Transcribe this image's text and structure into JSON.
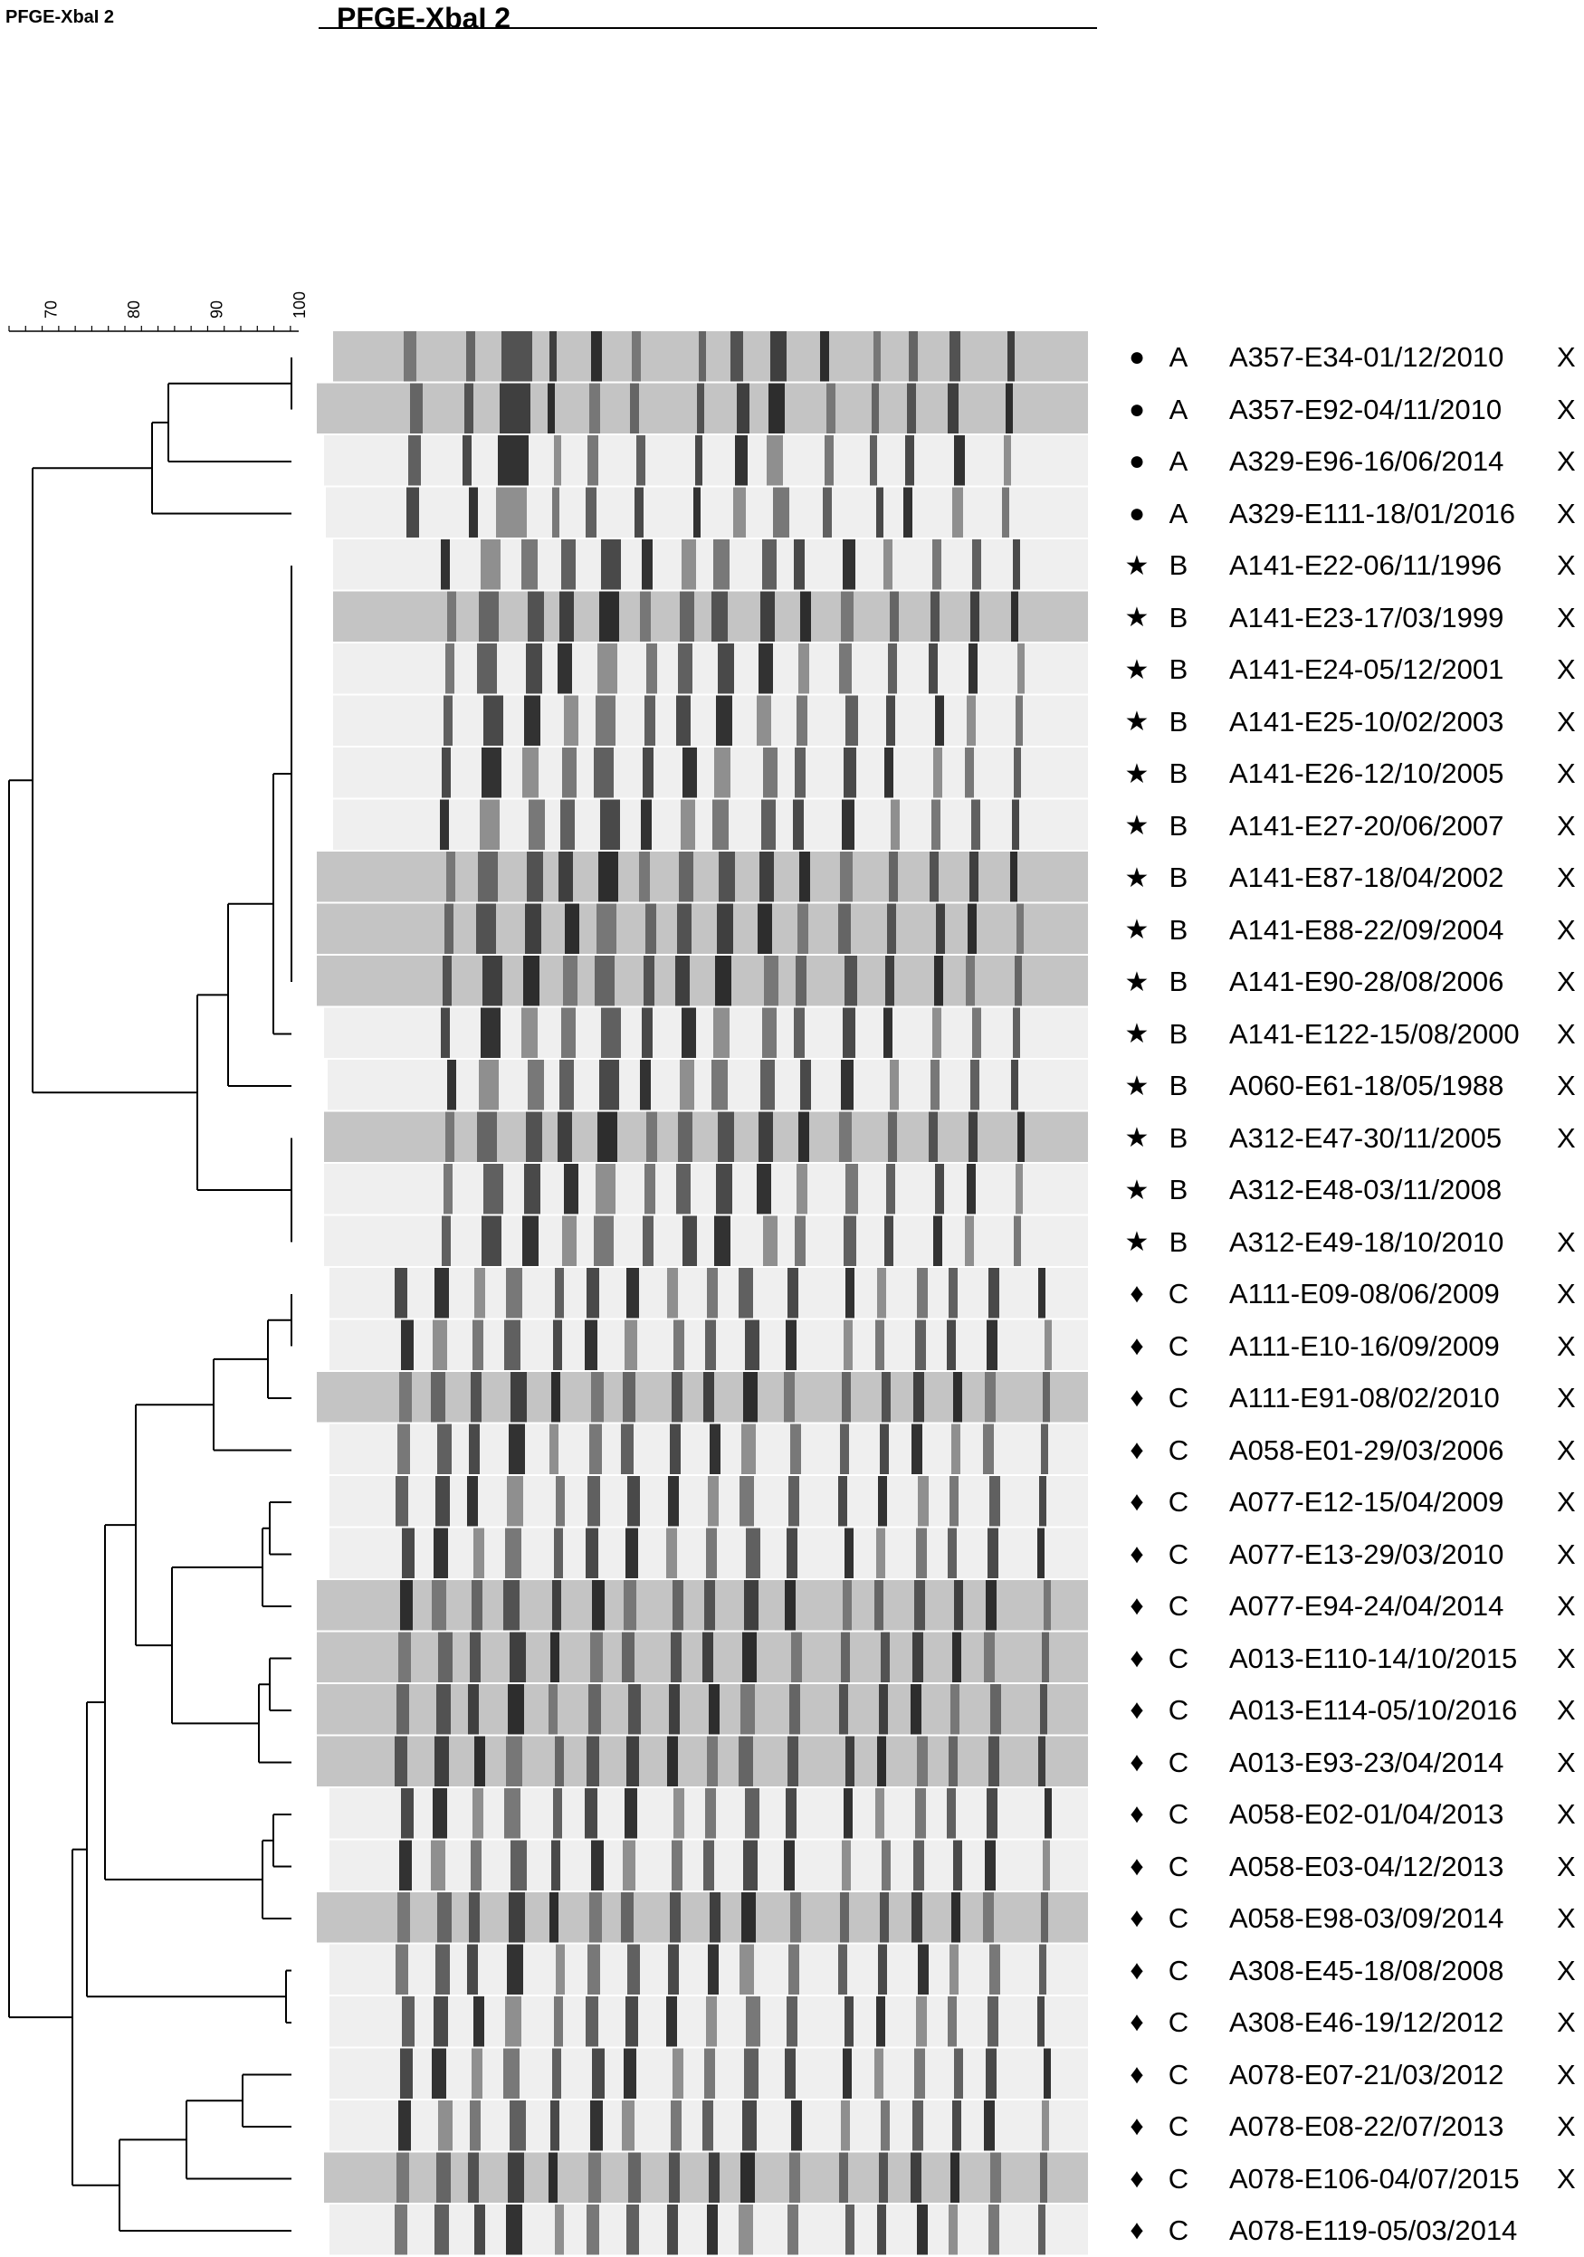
{
  "header": {
    "small_title": "PFGE-XbaI  2",
    "experiment_title": "PFGE-XbaI  2"
  },
  "scale": {
    "ticks": [
      "70",
      "80",
      "90",
      "100"
    ],
    "range": [
      65,
      100
    ]
  },
  "symbols": {
    "A": "●",
    "B": "★",
    "C": "♦"
  },
  "rows": [
    {
      "group": "A",
      "label": "A357-E34-01/12/2010",
      "x": "X"
    },
    {
      "group": "A",
      "label": "A357-E92-04/11/2010",
      "x": "X"
    },
    {
      "group": "A",
      "label": "A329-E96-16/06/2014",
      "x": "X"
    },
    {
      "group": "A",
      "label": "A329-E111-18/01/2016",
      "x": "X"
    },
    {
      "group": "B",
      "label": "A141-E22-06/11/1996",
      "x": "X"
    },
    {
      "group": "B",
      "label": "A141-E23-17/03/1999",
      "x": "X"
    },
    {
      "group": "B",
      "label": "A141-E24-05/12/2001",
      "x": "X"
    },
    {
      "group": "B",
      "label": "A141-E25-10/02/2003",
      "x": "X"
    },
    {
      "group": "B",
      "label": "A141-E26-12/10/2005",
      "x": "X"
    },
    {
      "group": "B",
      "label": "A141-E27-20/06/2007",
      "x": "X"
    },
    {
      "group": "B",
      "label": "A141-E87-18/04/2002",
      "x": "X"
    },
    {
      "group": "B",
      "label": "A141-E88-22/09/2004",
      "x": "X"
    },
    {
      "group": "B",
      "label": "A141-E90-28/08/2006",
      "x": "X"
    },
    {
      "group": "B",
      "label": "A141-E122-15/08/2000",
      "x": "X"
    },
    {
      "group": "B",
      "label": "A060-E61-18/05/1988",
      "x": "X"
    },
    {
      "group": "B",
      "label": "A312-E47-30/11/2005",
      "x": "X"
    },
    {
      "group": "B",
      "label": "A312-E48-03/11/2008",
      "x": ""
    },
    {
      "group": "B",
      "label": "A312-E49-18/10/2010",
      "x": "X"
    },
    {
      "group": "C",
      "label": "A111-E09-08/06/2009",
      "x": "X"
    },
    {
      "group": "C",
      "label": "A111-E10-16/09/2009",
      "x": "X"
    },
    {
      "group": "C",
      "label": "A111-E91-08/02/2010",
      "x": "X"
    },
    {
      "group": "C",
      "label": "A058-E01-29/03/2006",
      "x": "X"
    },
    {
      "group": "C",
      "label": "A077-E12-15/04/2009",
      "x": "X"
    },
    {
      "group": "C",
      "label": "A077-E13-29/03/2010",
      "x": "X"
    },
    {
      "group": "C",
      "label": "A077-E94-24/04/2014",
      "x": "X"
    },
    {
      "group": "C",
      "label": "A013-E110-14/10/2015",
      "x": "X"
    },
    {
      "group": "C",
      "label": "A013-E114-05/10/2016",
      "x": "X"
    },
    {
      "group": "C",
      "label": "A013-E93-23/04/2014",
      "x": "X"
    },
    {
      "group": "C",
      "label": "A058-E02-01/04/2013",
      "x": "X"
    },
    {
      "group": "C",
      "label": "A058-E03-04/12/2013",
      "x": "X"
    },
    {
      "group": "C",
      "label": "A058-E98-03/09/2014",
      "x": "X"
    },
    {
      "group": "C",
      "label": "A308-E45-18/08/2008",
      "x": "X"
    },
    {
      "group": "C",
      "label": "A308-E46-19/12/2012",
      "x": "X"
    },
    {
      "group": "C",
      "label": "A078-E07-21/03/2012",
      "x": "X"
    },
    {
      "group": "C",
      "label": "A078-E08-22/07/2013",
      "x": "X"
    },
    {
      "group": "C",
      "label": "A078-E106-04/07/2015",
      "x": "X"
    },
    {
      "group": "C",
      "label": "A078-E119-05/03/2014",
      "x": ""
    }
  ],
  "colors": {
    "background": "#ffffff",
    "band": "#1a1a1a",
    "lane_light": "#f2f2f2",
    "lane_dark": "#bdbdbd"
  }
}
